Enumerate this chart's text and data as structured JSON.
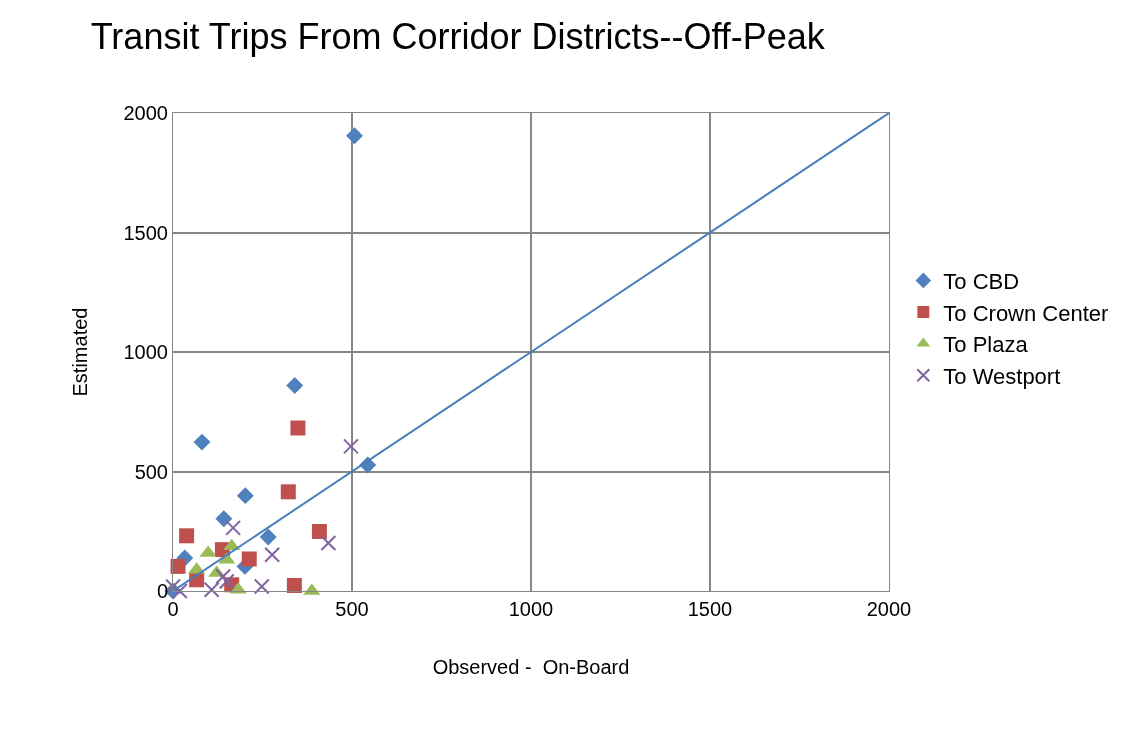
{
  "chart_data": {
    "type": "scatter",
    "title": "Transit Trips From Corridor Districts--Off-Peak",
    "xlabel": "Observed -  On-Board",
    "ylabel": "Estimated",
    "xlim": [
      0,
      2000
    ],
    "ylim": [
      0,
      2000
    ],
    "xticks": [
      0,
      500,
      1000,
      1500,
      2000
    ],
    "yticks": [
      0,
      500,
      1000,
      1500,
      2000
    ],
    "grid": true,
    "legend": "right",
    "series": [
      {
        "name": "To CBD",
        "color": "#4f81bd",
        "marker": "diamond",
        "x": [
          507,
          340,
          81,
          544,
          202,
          142,
          266,
          33,
          201,
          0
        ],
        "values": [
          1905,
          860,
          623,
          527,
          399,
          302,
          226,
          138,
          103,
          0
        ]
      },
      {
        "name": "To Crown Center",
        "color": "#c0504d",
        "marker": "square",
        "x": [
          349,
          322,
          38,
          409,
          138,
          213,
          14,
          339,
          164,
          66
        ],
        "values": [
          682,
          415,
          231,
          249,
          173,
          134,
          103,
          23,
          26,
          47
        ]
      },
      {
        "name": "To Plaza",
        "color": "#9bbb59",
        "marker": "triangle",
        "x": [
          164,
          98,
          150,
          66,
          388,
          182,
          122
        ],
        "values": [
          187,
          159,
          131,
          89,
          0,
          5,
          75
        ]
      },
      {
        "name": "To Westport",
        "color": "#8064a2",
        "marker": "cross",
        "x": [
          497,
          434,
          277,
          168,
          248,
          150,
          108,
          140,
          0,
          19
        ],
        "values": [
          605,
          201,
          152,
          264,
          19,
          40,
          5,
          61,
          19,
          0
        ]
      },
      {
        "type": "line",
        "color": "#4a7ebb",
        "marker": "none",
        "line_style": "solid",
        "x": [
          0,
          2000
        ],
        "values": [
          0,
          2000
        ]
      }
    ]
  }
}
